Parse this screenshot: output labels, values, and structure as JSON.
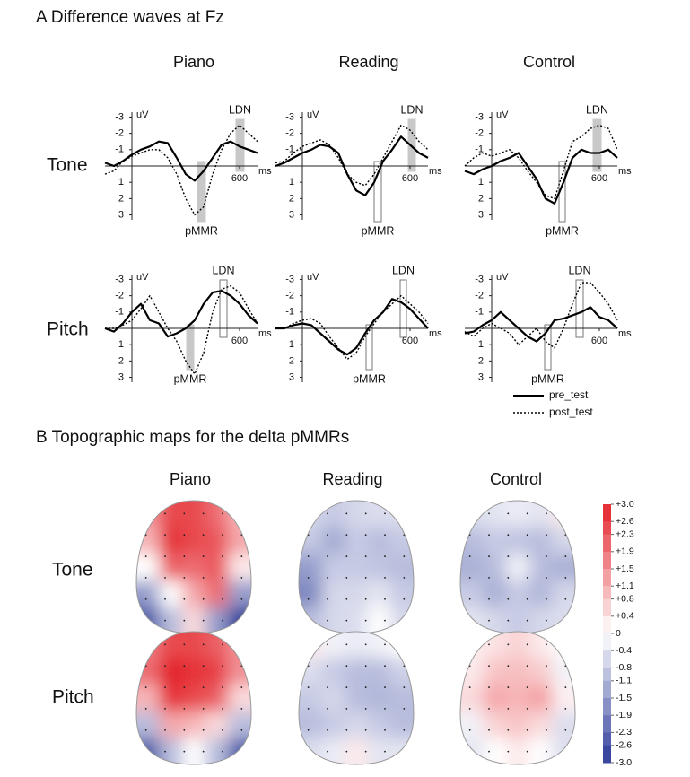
{
  "panel_a": {
    "title": "A  Difference waves at Fz",
    "columns": [
      "Piano",
      "Reading",
      "Control"
    ],
    "rows": [
      "Tone",
      "Pitch"
    ],
    "x_unit": "ms",
    "y_unit": "uV",
    "xlim": [
      -150,
      700
    ],
    "ylim": [
      -3.3,
      3.3
    ],
    "xticks": [
      600
    ],
    "yticks": [
      -3,
      -2,
      -1,
      1,
      2,
      3
    ],
    "series_names": [
      "pre_test",
      "post_test"
    ],
    "times": [
      -150,
      -100,
      -50,
      0,
      50,
      100,
      150,
      200,
      250,
      300,
      350,
      400,
      450,
      500,
      550,
      600,
      650,
      700
    ],
    "panels": [
      {
        "pre": [
          -0.2,
          0,
          -0.3,
          -0.7,
          -1,
          -1.2,
          -1.5,
          -1.4,
          -0.5,
          0.5,
          0.9,
          0.3,
          -0.5,
          -1.3,
          -1.5,
          -1.2,
          -1.0,
          -0.8
        ],
        "post": [
          0.5,
          0.3,
          -0.3,
          -0.6,
          -0.8,
          -1,
          -1,
          -0.5,
          0.5,
          2,
          3,
          2.5,
          0.5,
          -1,
          -2,
          -2.5,
          -2,
          -1.5
        ],
        "pmmr_window": [
          365,
          410
        ],
        "pmmr_filled": true,
        "ldn_window": [
          580,
          625
        ],
        "ldn_filled": true,
        "pmmr_label": "pMMR",
        "ldn_label": "LDN"
      },
      {
        "pre": [
          0,
          -0.2,
          -0.5,
          -0.8,
          -1,
          -1.3,
          -1.2,
          -0.8,
          0.5,
          1.5,
          1.8,
          1,
          -0.3,
          -1,
          -1.8,
          -1.3,
          -0.8,
          -0.5
        ],
        "post": [
          -0.2,
          -0.3,
          -0.8,
          -1.2,
          -1.4,
          -1.6,
          -1.3,
          -0.5,
          0.5,
          1,
          1.2,
          0.5,
          -0.5,
          -1.5,
          -2.5,
          -2.2,
          -1.5,
          -1
        ],
        "pmmr_window": [
          400,
          440
        ],
        "pmmr_filled": false,
        "ldn_window": [
          590,
          630
        ],
        "ldn_filled": true,
        "pmmr_label": "pMMR",
        "ldn_label": "LDN"
      },
      {
        "pre": [
          0.3,
          0.5,
          0.2,
          0,
          -0.3,
          -0.5,
          -0.8,
          0,
          0.8,
          2,
          2.3,
          1,
          -0.5,
          -1,
          -0.8,
          -0.8,
          -1,
          -0.5
        ],
        "post": [
          0,
          -0.5,
          -0.8,
          -0.6,
          -0.8,
          -1,
          -0.5,
          0.3,
          1,
          1.8,
          2,
          0.3,
          -1.5,
          -1.8,
          -2.3,
          -2.5,
          -2.3,
          -1
        ],
        "pmmr_window": [
          375,
          410
        ],
        "pmmr_filled": false,
        "ldn_window": [
          565,
          610
        ],
        "ldn_filled": true,
        "pmmr_label": "pMMR",
        "ldn_label": "LDN"
      },
      {
        "pre": [
          0,
          0.2,
          -0.3,
          -1,
          -1.5,
          -0.5,
          -0.3,
          0.5,
          0.3,
          0,
          -0.5,
          -1.5,
          -2.2,
          -2.3,
          -2,
          -1.5,
          -0.8,
          -0.3
        ],
        "post": [
          0,
          0,
          -0.2,
          -0.5,
          -1.2,
          -2,
          -1,
          0,
          0.8,
          2,
          2.8,
          1.5,
          -1,
          -2.4,
          -2.6,
          -2.2,
          -1.2,
          -0.3
        ],
        "pmmr_window": [
          305,
          345
        ],
        "pmmr_filled": true,
        "ldn_window": [
          490,
          530
        ],
        "ldn_filled": false,
        "pmmr_label": "pMMR",
        "ldn_label": "LDN"
      },
      {
        "pre": [
          0,
          0,
          -0.2,
          -0.3,
          -0.2,
          0.3,
          0.8,
          1.3,
          1.6,
          1.2,
          0.3,
          -0.5,
          -1,
          -1.8,
          -1.6,
          -1.2,
          -0.6,
          0
        ],
        "post": [
          0,
          0,
          -0.3,
          -0.5,
          -0.6,
          -0.3,
          0.5,
          1.2,
          1.9,
          1.5,
          0.5,
          -0.3,
          -1,
          -1.5,
          -2,
          -1.5,
          -1,
          -0.3
        ],
        "pmmr_window": [
          355,
          390
        ],
        "pmmr_filled": false,
        "ldn_window": [
          545,
          580
        ],
        "ldn_filled": false,
        "pmmr_label": "pMMR",
        "ldn_label": "LDN"
      },
      {
        "pre": [
          0.3,
          0.2,
          -0.2,
          -0.5,
          -1,
          -0.5,
          0,
          0.5,
          0.8,
          0.3,
          -0.5,
          -0.6,
          -0.8,
          -1,
          -1.3,
          -0.7,
          -0.5,
          0
        ],
        "post": [
          0.2,
          0.5,
          0,
          -0.3,
          0,
          0.3,
          1,
          0.5,
          0,
          0.8,
          1.2,
          0,
          -1.5,
          -2.8,
          -2.8,
          -2.2,
          -1.5,
          -0.5
        ],
        "pmmr_window": [
          295,
          330
        ],
        "pmmr_filled": false,
        "ldn_window": [
          470,
          510
        ],
        "ldn_filled": false,
        "pmmr_label": "pMMR",
        "ldn_label": "LDN"
      }
    ]
  },
  "panel_b": {
    "title": "B  Topographic maps for the delta pMMRs",
    "columns": [
      "Piano",
      "Reading",
      "Control"
    ],
    "rows": [
      "Tone",
      "Pitch"
    ],
    "colormap": {
      "negative": "#2b3a98",
      "zero": "#ffffff",
      "positive": "#e3232a"
    },
    "colorbar_ticks": [
      {
        "value": 3,
        "label": "+3.0"
      },
      {
        "value": 2.6,
        "label": "+2.6"
      },
      {
        "value": 2.3,
        "label": "+2.3"
      },
      {
        "value": 1.9,
        "label": "+1.9"
      },
      {
        "value": 1.5,
        "label": "+1.5"
      },
      {
        "value": 1.1,
        "label": "+1.1"
      },
      {
        "value": 0.8,
        "label": "+0.8"
      },
      {
        "value": 0.4,
        "label": "+0.4"
      },
      0,
      {
        "value": -0.4,
        "label": "-0.4"
      },
      {
        "value": -0.8,
        "label": "-0.8"
      },
      {
        "value": -1.1,
        "label": "-1.1"
      },
      {
        "value": -1.5,
        "label": "-1.5"
      },
      {
        "value": -1.9,
        "label": "-1.9"
      },
      {
        "value": -2.3,
        "label": "-2.3"
      },
      {
        "value": -2.6,
        "label": "-2.6"
      },
      {
        "value": -3,
        "label": "-3.0"
      }
    ],
    "maps": [
      [
        [
          1.5,
          2.5,
          2.5,
          2,
          1
        ],
        [
          1,
          2.8,
          2.5,
          2.3,
          1.2
        ],
        [
          0,
          2.2,
          2,
          2.3,
          0.3
        ],
        [
          -1.5,
          0,
          1.2,
          2,
          -1.5
        ],
        [
          -2.5,
          -1,
          0.5,
          -1.5,
          -3
        ]
      ],
      [
        [
          -0.6,
          -0.8,
          -0.6,
          -0.5,
          -0.5
        ],
        [
          -0.8,
          -1.3,
          -0.8,
          -1,
          -0.8
        ],
        [
          -1.5,
          -0.8,
          -0.8,
          -0.9,
          -1
        ],
        [
          -1.8,
          -0.6,
          -0.6,
          -0.4,
          -0.8
        ],
        [
          -1,
          -0.6,
          -0.5,
          0,
          -0.6
        ]
      ],
      [
        [
          -0.5,
          -0.4,
          -0.3,
          -0.4,
          0.3
        ],
        [
          -1,
          -0.8,
          -0.9,
          -1,
          -0.6
        ],
        [
          -1.2,
          -1,
          -0.2,
          -1,
          -1.2
        ],
        [
          -0.8,
          -1.2,
          -0.8,
          -1.1,
          -0.6
        ],
        [
          -0.4,
          -0.6,
          -0.8,
          -0.6,
          -0.5
        ]
      ],
      [
        [
          1.8,
          2.5,
          2.5,
          2.2,
          1.5
        ],
        [
          2,
          3,
          2.8,
          2.6,
          1.5
        ],
        [
          1,
          2.8,
          2.5,
          2.2,
          0.5
        ],
        [
          -1,
          1.2,
          1,
          0.5,
          -1
        ],
        [
          -2.5,
          -1,
          0,
          -1,
          -2.5
        ]
      ],
      [
        [
          0.3,
          -0.2,
          -0.3,
          -0.2,
          0
        ],
        [
          -0.5,
          -0.8,
          -1,
          -1,
          -0.7
        ],
        [
          -0.8,
          -0.6,
          -1,
          -1.1,
          -1
        ],
        [
          -1,
          -0.8,
          -0.6,
          -0.8,
          -1
        ],
        [
          -0.5,
          -0.3,
          0.3,
          -0.4,
          -0.4
        ]
      ],
      [
        [
          0.2,
          0.4,
          0.6,
          0.3,
          0
        ],
        [
          0.3,
          0.8,
          0.9,
          0.7,
          -0.2
        ],
        [
          0.5,
          1.2,
          1,
          1.3,
          0.2
        ],
        [
          -0.2,
          0.6,
          0.8,
          0.5,
          -0.5
        ],
        [
          -0.4,
          0,
          0.3,
          0,
          -0.5
        ]
      ]
    ]
  }
}
